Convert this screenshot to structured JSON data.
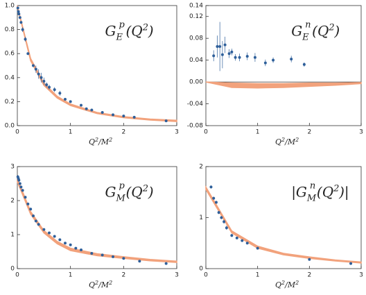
{
  "chart_data": [
    {
      "type": "scatter",
      "title": [
        "G",
        "E",
        "p",
        "(Q",
        "2",
        ")"
      ],
      "xlabel": [
        "Q",
        "2",
        "/M",
        "2"
      ],
      "x": [
        0.01,
        0.02,
        0.03,
        0.05,
        0.07,
        0.1,
        0.15,
        0.2,
        0.3,
        0.35,
        0.4,
        0.45,
        0.5,
        0.55,
        0.6,
        0.7,
        0.8,
        0.9,
        1.0,
        1.2,
        1.3,
        1.4,
        1.6,
        1.8,
        2.0,
        2.2,
        2.8
      ],
      "y": [
        0.98,
        0.95,
        0.93,
        0.9,
        0.86,
        0.8,
        0.72,
        0.6,
        0.5,
        0.47,
        0.43,
        0.4,
        0.37,
        0.34,
        0.32,
        0.3,
        0.27,
        0.22,
        0.2,
        0.17,
        0.14,
        0.13,
        0.11,
        0.09,
        0.08,
        0.07,
        0.04
      ],
      "errors": [
        0.01,
        0.01,
        0.01,
        0.01,
        0.01,
        0.02,
        0.02,
        0.01,
        0.01,
        0.03,
        0.04,
        0.04,
        0.03,
        0.02,
        0.02,
        0.02,
        0.02,
        0.01,
        0.01,
        0.01,
        0.01,
        0.01,
        0.01,
        0.01,
        0.01,
        0.01,
        0.01
      ],
      "color": "#2e5f9a",
      "band": {
        "x": [
          0,
          0.25,
          0.5,
          0.75,
          1,
          1.5,
          2,
          2.5,
          3
        ],
        "lower": [
          0.99,
          0.54,
          0.335,
          0.23,
          0.167,
          0.1,
          0.066,
          0.046,
          0.034
        ],
        "upper": [
          1.0,
          0.56,
          0.355,
          0.245,
          0.18,
          0.11,
          0.075,
          0.055,
          0.045
        ],
        "color": "#f2a27c"
      },
      "xlim": [
        0,
        3
      ],
      "ylim": [
        0,
        1.0
      ],
      "xticks": [
        0,
        1,
        2,
        3
      ],
      "yticks": [
        {
          "value": 0,
          "label": "0.0"
        },
        0.2,
        0.4,
        0.6,
        0.8,
        {
          "value": 1.0,
          "label": "1.0"
        }
      ]
    },
    {
      "type": "scatter",
      "title": [
        "G",
        "E",
        "n",
        "(Q",
        "2",
        ")"
      ],
      "xlabel": [
        "Q",
        "2",
        "/M",
        "2"
      ],
      "x": [
        0.15,
        0.22,
        0.27,
        0.32,
        0.37,
        0.45,
        0.5,
        0.57,
        0.65,
        0.8,
        0.95,
        1.15,
        1.3,
        1.65,
        1.9
      ],
      "y": [
        0.048,
        0.065,
        0.065,
        0.05,
        0.068,
        0.052,
        0.055,
        0.045,
        0.045,
        0.047,
        0.045,
        0.035,
        0.04,
        0.042,
        0.032
      ],
      "errors": [
        0.01,
        0.02,
        0.045,
        0.025,
        0.015,
        0.008,
        0.006,
        0.006,
        0.007,
        0.007,
        0.008,
        0.006,
        0.005,
        0.006,
        0.004
      ],
      "color": "#2e5f9a",
      "band": {
        "x": [
          0,
          0.5,
          1,
          1.5,
          2,
          2.5,
          3
        ],
        "lower": [
          0,
          -0.01,
          -0.011,
          -0.01,
          -0.008,
          -0.006,
          -0.003
        ],
        "upper": [
          0,
          -0.002,
          -0.003,
          -0.003,
          -0.002,
          -0.002,
          -0.001
        ],
        "color": "#f2a27c"
      },
      "zero_line": true,
      "xlim": [
        0,
        3
      ],
      "ylim": [
        -0.08,
        0.14
      ],
      "xticks": [
        0,
        1,
        2,
        3
      ],
      "yticks": [
        -0.08,
        -0.04,
        {
          "value": 0,
          "label": "0.00"
        },
        0.04,
        0.08,
        0.12,
        0.14
      ]
    },
    {
      "type": "scatter",
      "title": [
        "G",
        "M",
        "p",
        "(Q",
        "2",
        ")"
      ],
      "xlabel": [
        "Q",
        "2",
        "/M",
        "2"
      ],
      "x": [
        0.01,
        0.02,
        0.03,
        0.05,
        0.07,
        0.1,
        0.15,
        0.2,
        0.25,
        0.3,
        0.35,
        0.4,
        0.5,
        0.6,
        0.7,
        0.8,
        0.9,
        1.0,
        1.1,
        1.2,
        1.4,
        1.6,
        1.8,
        2.0,
        2.3,
        2.8
      ],
      "y": [
        2.7,
        2.65,
        2.6,
        2.5,
        2.4,
        2.3,
        2.1,
        1.9,
        1.75,
        1.55,
        1.4,
        1.3,
        1.15,
        1.05,
        0.95,
        0.85,
        0.75,
        0.7,
        0.6,
        0.55,
        0.45,
        0.4,
        0.35,
        0.3,
        0.22,
        0.15
      ],
      "errors": [
        0.05,
        0.05,
        0.05,
        0.04,
        0.04,
        0.04,
        0.03,
        0.03,
        0.03,
        0.03,
        0.02,
        0.02,
        0.02,
        0.02,
        0.02,
        0.02,
        0.02,
        0.02,
        0.02,
        0.02,
        0.02,
        0.02,
        0.02,
        0.02,
        0.02,
        0.02
      ],
      "color": "#2e5f9a",
      "band": {
        "x": [
          0,
          0.25,
          0.5,
          0.75,
          1,
          1.5,
          2,
          2.5,
          3
        ],
        "lower": [
          2.55,
          1.6,
          1.05,
          0.73,
          0.53,
          0.38,
          0.3,
          0.23,
          0.18
        ],
        "upper": [
          2.65,
          1.68,
          1.12,
          0.8,
          0.6,
          0.44,
          0.35,
          0.27,
          0.22
        ],
        "color": "#f2a27c"
      },
      "xlim": [
        0,
        3
      ],
      "ylim": [
        0,
        3
      ],
      "xticks": [
        0,
        1,
        2,
        3
      ],
      "yticks": [
        0,
        1,
        2,
        3
      ]
    },
    {
      "type": "scatter",
      "title": [
        "|G",
        "M",
        "n",
        "(Q",
        "2",
        ")|"
      ],
      "xlabel": [
        "Q",
        "2",
        "/M",
        "2"
      ],
      "x": [
        0.1,
        0.15,
        0.2,
        0.25,
        0.3,
        0.35,
        0.4,
        0.5,
        0.6,
        0.7,
        0.8,
        1.0,
        2.0,
        2.8
      ],
      "y": [
        1.6,
        1.38,
        1.3,
        1.1,
        1.0,
        0.92,
        0.8,
        0.65,
        0.6,
        0.55,
        0.5,
        0.4,
        0.18,
        0.1
      ],
      "errors": [
        0.03,
        0.03,
        0.03,
        0.03,
        0.03,
        0.04,
        0.04,
        0.03,
        0.02,
        0.02,
        0.02,
        0.02,
        0.02,
        0.02
      ],
      "color": "#2e5f9a",
      "band": {
        "x": [
          0,
          0.5,
          1,
          1.5,
          2,
          2.5,
          3
        ],
        "lower": [
          1.55,
          0.7,
          0.4,
          0.27,
          0.2,
          0.15,
          0.11
        ],
        "upper": [
          1.6,
          0.74,
          0.44,
          0.3,
          0.23,
          0.17,
          0.13
        ],
        "color": "#f2a27c"
      },
      "xlim": [
        0,
        3
      ],
      "ylim": [
        0,
        2
      ],
      "xticks": [
        0,
        1,
        2,
        3
      ],
      "yticks": [
        0,
        1,
        2
      ]
    }
  ]
}
